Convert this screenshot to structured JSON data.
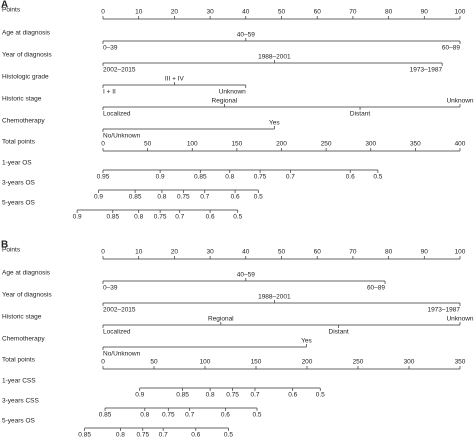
{
  "chart_data": [
    {
      "type": "nomogram",
      "label": "A",
      "points_axis": {
        "name": "Points",
        "xlim": [
          0,
          100
        ],
        "xticks": [
          0,
          10,
          20,
          30,
          40,
          50,
          60,
          70,
          80,
          90,
          100
        ]
      },
      "rows": [
        {
          "name": "Age at diagnosis",
          "levels": [
            "0–39",
            "40–59",
            "60–89"
          ],
          "points": [
            0,
            40,
            100
          ]
        },
        {
          "name": "Year of diagnosis",
          "levels": [
            "2002–2015",
            "1988–2001",
            "1973–1987"
          ],
          "points": [
            0,
            48,
            95
          ]
        },
        {
          "name": "Histologic grade",
          "levels": [
            "I + II",
            "III + IV",
            "Unknown"
          ],
          "points": [
            0,
            20,
            40
          ]
        },
        {
          "name": "Historic stage",
          "levels": [
            "Localized",
            "Regional",
            "Distant",
            "Unknown"
          ],
          "points": [
            0,
            34,
            72,
            100
          ]
        },
        {
          "name": "Chemotherapy",
          "levels": [
            "No/Unknown",
            "Yes"
          ],
          "points": [
            0,
            48
          ]
        }
      ],
      "total_axis": {
        "name": "Total points",
        "xlim": [
          0,
          400
        ],
        "xticks": [
          0,
          50,
          100,
          150,
          200,
          250,
          300,
          350,
          400
        ]
      },
      "outcomes": [
        {
          "name": "1-year OS",
          "values": [
            0.95,
            0.9,
            0.85,
            0.8,
            0.75,
            0.7,
            0.6,
            0.5
          ],
          "points": [
            0,
            64,
            109,
            142,
            176,
            210,
            277,
            308
          ]
        },
        {
          "name": "3-years OS",
          "values": [
            0.9,
            0.85,
            0.8,
            0.75,
            0.7,
            0.6,
            0.5
          ],
          "points": [
            -5,
            36,
            66,
            90,
            114,
            148,
            174
          ]
        },
        {
          "name": "5-years OS",
          "values": [
            0.9,
            0.85,
            0.8,
            0.75,
            0.7,
            0.6,
            0.5
          ],
          "points": [
            -29,
            11,
            40,
            64,
            86,
            120,
            151
          ]
        }
      ]
    },
    {
      "type": "nomogram",
      "label": "B",
      "points_axis": {
        "name": "Points",
        "xlim": [
          0,
          100
        ],
        "xticks": [
          0,
          10,
          20,
          30,
          40,
          50,
          60,
          70,
          80,
          90,
          100
        ]
      },
      "rows": [
        {
          "name": "Age at diagnosis",
          "levels": [
            "0–39",
            "40–59",
            "60–89"
          ],
          "points": [
            0,
            40,
            79
          ]
        },
        {
          "name": "Year of diagnosis",
          "levels": [
            "2002–2015",
            "1988–2001",
            "1973–1987"
          ],
          "points": [
            0,
            48,
            100
          ]
        },
        {
          "name": "Historic stage",
          "levels": [
            "Localized",
            "Regional",
            "Distant",
            "Unknown"
          ],
          "points": [
            0,
            33,
            66,
            100
          ]
        },
        {
          "name": "Chemotherapy",
          "levels": [
            "No/Unknown",
            "Yes"
          ],
          "points": [
            0,
            57
          ]
        }
      ],
      "total_axis": {
        "name": "Total points",
        "xlim": [
          0,
          350
        ],
        "xticks": [
          0,
          50,
          100,
          150,
          200,
          250,
          300,
          350
        ]
      },
      "outcomes": [
        {
          "name": "1-year CSS",
          "values": [
            0.9,
            0.85,
            0.8,
            0.75,
            0.7,
            0.6,
            0.5
          ],
          "points": [
            36,
            78,
            105,
            127,
            149,
            186,
            213
          ]
        },
        {
          "name": "3-years CSS",
          "values": [
            0.85,
            0.8,
            0.75,
            0.7,
            0.6,
            0.5
          ],
          "points": [
            2,
            41,
            64,
            85,
            120,
            151
          ]
        },
        {
          "name": "5-years OS",
          "values": [
            0.85,
            0.8,
            0.75,
            0.7,
            0.6,
            0.5
          ],
          "points": [
            -18,
            17,
            39,
            59,
            91,
            123
          ]
        }
      ]
    }
  ]
}
